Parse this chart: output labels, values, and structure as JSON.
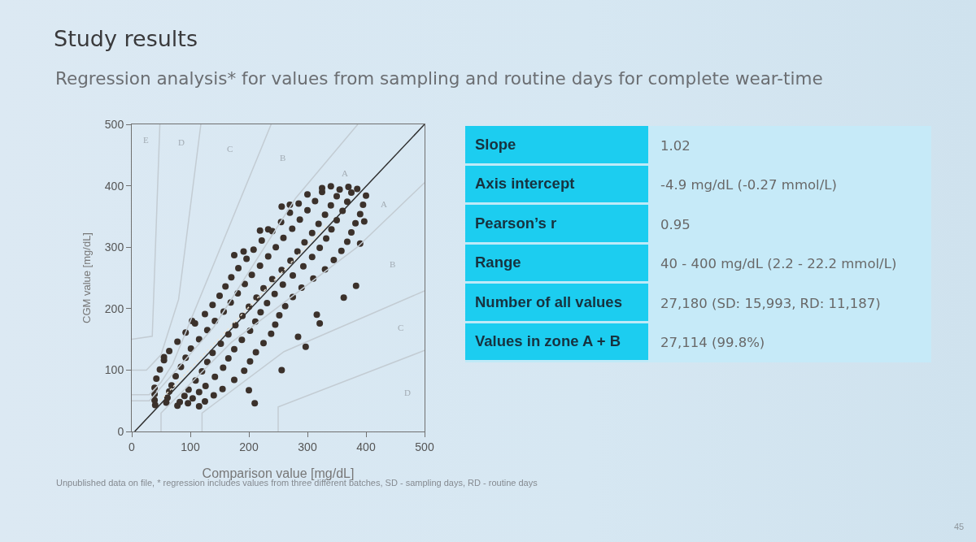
{
  "chart_data": [
    {
      "type": "scatter",
      "title": "Study results",
      "subtitle": "Regression analysis* for values from sampling and routine days for complete wear-time",
      "xlabel": "Comparison value [mg/dL]",
      "ylabel": "CGM value [mg/dL]",
      "xlim": [
        0,
        500
      ],
      "xticks": [
        0,
        100,
        200,
        300,
        400,
        500
      ],
      "ylim": [
        0,
        500
      ],
      "yticks": [
        0,
        100,
        200,
        300,
        400,
        500
      ],
      "series": [
        {
          "type": "line",
          "color": "#2e2e2e",
          "x": [
            5,
            500
          ],
          "values": [
            0,
            500
          ]
        },
        {
          "type": "scatter",
          "marker": "circle",
          "color": "#3b312b",
          "x": [
            40,
            59,
            78,
            96,
            115,
            39,
            61,
            82,
            104,
            125,
            39,
            64,
            90,
            115,
            140,
            39,
            68,
            97,
            126,
            155,
            42,
            75,
            109,
            142,
            175,
            48,
            84,
            120,
            156,
            192,
            55,
            92,
            129,
            165,
            202,
            64,
            101,
            138,
            175,
            212,
            78,
            115,
            152,
            188,
            225,
            92,
            129,
            165,
            202,
            238,
            108,
            142,
            177,
            211,
            245,
            125,
            157,
            189,
            220,
            252,
            138,
            169,
            200,
            231,
            262,
            150,
            181,
            213,
            244,
            275,
            160,
            193,
            225,
            258,
            290,
            170,
            205,
            240,
            275,
            310,
            182,
            219,
            256,
            293,
            330,
            196,
            233,
            271,
            308,
            345,
            208,
            246,
            283,
            321,
            358,
            222,
            259,
            295,
            332,
            368,
            240,
            274,
            308,
            341,
            375,
            255,
            287,
            319,
            350,
            382,
            270,
            300,
            330,
            360,
            390,
            285,
            313,
            340,
            368,
            395,
            300,
            325,
            350,
            375,
            400,
            325,
            340,
            355,
            370,
            385,
            219,
            233,
            175,
            191,
            256,
            270,
            383,
            362,
            397,
            390,
            316,
            321,
            297,
            256,
            210,
            55,
            103,
            284,
            200
          ],
          "values": [
            43,
            47,
            42,
            46,
            41,
            51,
            55,
            48,
            54,
            49,
            61,
            65,
            58,
            64,
            59,
            71,
            75,
            68,
            74,
            69,
            86,
            90,
            83,
            89,
            84,
            101,
            105,
            98,
            104,
            99,
            116,
            120,
            113,
            119,
            114,
            131,
            135,
            128,
            134,
            129,
            146,
            150,
            143,
            149,
            144,
            161,
            165,
            158,
            164,
            159,
            176,
            180,
            173,
            179,
            174,
            191,
            195,
            188,
            194,
            189,
            206,
            210,
            203,
            209,
            204,
            221,
            225,
            218,
            224,
            219,
            236,
            240,
            233,
            239,
            234,
            251,
            255,
            248,
            254,
            249,
            266,
            270,
            263,
            269,
            264,
            281,
            285,
            278,
            284,
            279,
            296,
            300,
            293,
            299,
            294,
            311,
            315,
            308,
            314,
            309,
            326,
            330,
            323,
            329,
            324,
            341,
            345,
            338,
            344,
            339,
            356,
            360,
            353,
            359,
            354,
            371,
            375,
            368,
            374,
            369,
            386,
            390,
            383,
            389,
            384,
            396,
            399,
            394,
            398,
            395,
            327,
            329,
            287,
            293,
            366,
            369,
            237,
            218,
            342,
            306,
            190,
            176,
            138,
            100,
            46,
            121,
            180,
            154,
            67
          ]
        },
        {
          "type": "line",
          "color": "#c3ccd3",
          "x": [
            0,
            30,
            140,
            280,
            386
          ],
          "values": [
            50,
            50,
            170,
            380,
            500
          ]
        },
        {
          "type": "line",
          "color": "#c3ccd3",
          "x": [
            50,
            50,
            170,
            385,
            500
          ],
          "values": [
            0,
            30,
            145,
            300,
            405
          ]
        },
        {
          "type": "line",
          "color": "#c3ccd3",
          "x": [
            0,
            30,
            50,
            70,
            238
          ],
          "values": [
            60,
            60,
            80,
            110,
            500
          ]
        },
        {
          "type": "line",
          "color": "#c3ccd3",
          "x": [
            120,
            120,
            260,
            500
          ],
          "values": [
            0,
            30,
            130,
            229
          ]
        },
        {
          "type": "line",
          "color": "#c3ccd3",
          "x": [
            0,
            25,
            50,
            80,
            118
          ],
          "values": [
            100,
            100,
            125,
            215,
            500
          ]
        },
        {
          "type": "line",
          "color": "#c3ccd3",
          "x": [
            250,
            250,
            500
          ],
          "values": [
            0,
            40,
            132
          ]
        },
        {
          "type": "line",
          "color": "#c3ccd3",
          "x": [
            0,
            35,
            48
          ],
          "values": [
            150,
            155,
            500
          ]
        },
        {
          "type": "line",
          "line_style": "dotted",
          "color": "#ece4d4",
          "x": [
            48,
            335
          ],
          "values": [
            50,
            338
          ]
        }
      ],
      "annotations": [
        "E",
        "D",
        "C",
        "B",
        "A",
        "A",
        "B",
        "C",
        "D",
        "Unpublished data on file, * regression includes values from three different batches, SD - sampling days, RD - routine days",
        "45"
      ]
    },
    {
      "type": "other",
      "annotations": [
        "Slope",
        "1.02",
        "Axis intercept",
        "-4.9 mg/dL (-0.27 mmol/L)",
        "Pearson’s r",
        "0.95",
        "Range",
        "40 - 400 mg/dL (2.2 - 22.2 mmol/L)",
        "Number of all values",
        "27,180 (SD: 15,993, RD: 11,187)",
        "Values in zone A + B",
        "27,114 (99.8%)"
      ]
    }
  ]
}
